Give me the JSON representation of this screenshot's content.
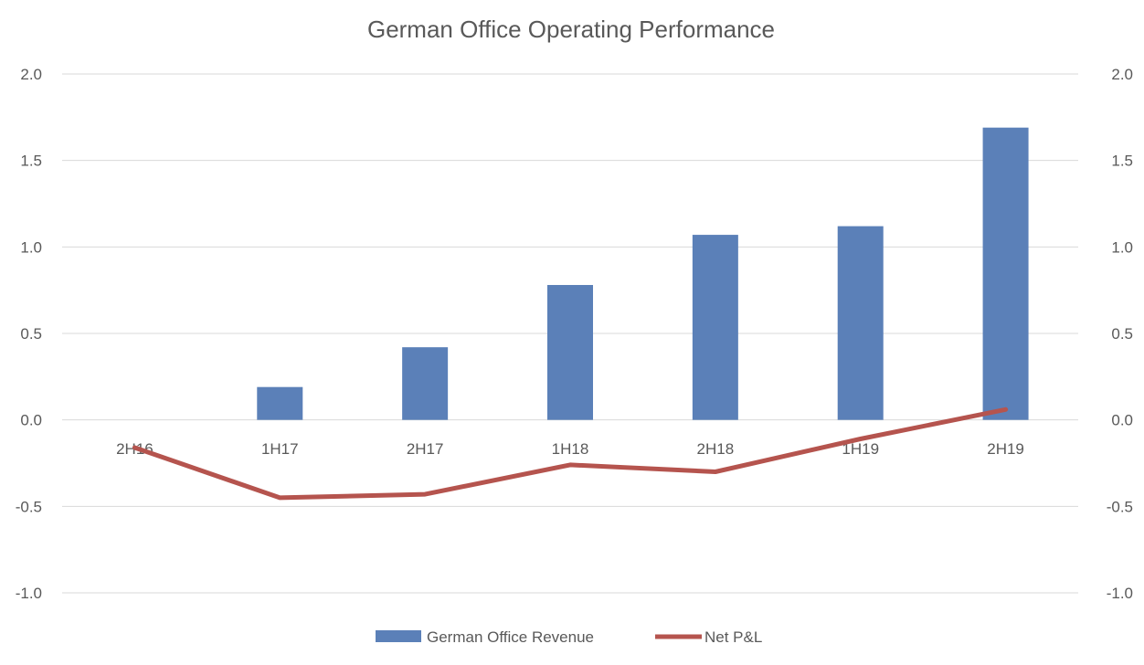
{
  "chart_data": {
    "type": "bar",
    "title": "German Office Operating Performance",
    "categories": [
      "2H16",
      "1H17",
      "2H17",
      "1H18",
      "2H18",
      "1H19",
      "2H19"
    ],
    "series": [
      {
        "name": "German Office Revenue",
        "type": "bar",
        "color": "#5b80b8",
        "values": [
          0.0,
          0.19,
          0.42,
          0.78,
          1.07,
          1.12,
          1.69
        ]
      },
      {
        "name": "Net P&L",
        "type": "line",
        "color": "#b5544e",
        "values": [
          -0.16,
          -0.45,
          -0.43,
          -0.26,
          -0.3,
          -0.11,
          0.06
        ]
      }
    ],
    "ylim": [
      -1.0,
      2.0
    ],
    "yticks": [
      "-1.0",
      "-0.5",
      "0.0",
      "0.5",
      "1.0",
      "1.5",
      "2.0"
    ],
    "secondary_yticks": [
      "-1.0",
      "-0.5",
      "0.0",
      "0.5",
      "1.0",
      "1.5",
      "2.0"
    ],
    "grid": true,
    "legend": "bottom"
  }
}
